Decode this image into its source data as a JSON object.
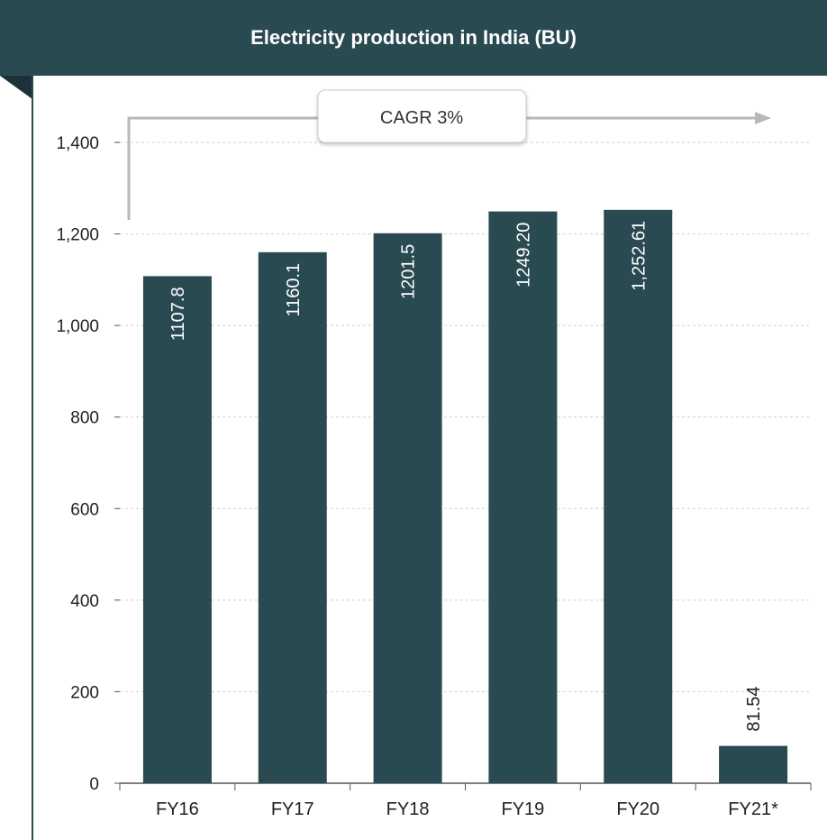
{
  "header": {
    "title": "Electricity production in India (BU)"
  },
  "annotation": {
    "text": "CAGR 3%"
  },
  "chart_data": {
    "type": "bar",
    "title": "Electricity production in India (BU)",
    "categories": [
      "FY16",
      "FY17",
      "FY18",
      "FY19",
      "FY20",
      "FY21*"
    ],
    "values": [
      1107.8,
      1160.1,
      1201.5,
      1249.2,
      1252.61,
      81.54
    ],
    "data_labels": [
      "1107.8",
      "1160.1",
      "1201.5",
      "1249.20",
      "1,252.61",
      "81.54"
    ],
    "ylim": [
      0,
      1400
    ],
    "yticks": [
      0,
      200,
      400,
      600,
      800,
      1000,
      1200,
      1400
    ],
    "ytick_labels": [
      "0",
      "200",
      "400",
      "600",
      "800",
      "1,000",
      "1,200",
      "1,400"
    ],
    "grid": true,
    "bar_color": "#2a4a52",
    "annotation": "CAGR 3%"
  }
}
